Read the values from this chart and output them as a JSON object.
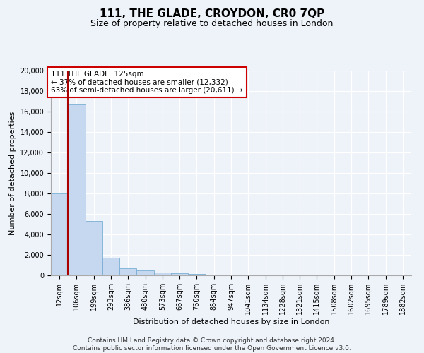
{
  "title": "111, THE GLADE, CROYDON, CR0 7QP",
  "subtitle": "Size of property relative to detached houses in London",
  "xlabel": "Distribution of detached houses by size in London",
  "ylabel": "Number of detached properties",
  "categories": [
    "12sqm",
    "106sqm",
    "199sqm",
    "293sqm",
    "386sqm",
    "480sqm",
    "573sqm",
    "667sqm",
    "760sqm",
    "854sqm",
    "947sqm",
    "1041sqm",
    "1134sqm",
    "1228sqm",
    "1321sqm",
    "1415sqm",
    "1508sqm",
    "1602sqm",
    "1695sqm",
    "1789sqm",
    "1882sqm"
  ],
  "values": [
    8000,
    16700,
    5300,
    1750,
    700,
    450,
    300,
    200,
    150,
    100,
    80,
    60,
    50,
    40,
    30,
    20,
    15,
    10,
    8,
    5,
    3
  ],
  "bar_color": "#c5d8ef",
  "bar_edge_color": "#7aafd4",
  "vline_x": 0.5,
  "vline_color": "#aa0000",
  "annotation_text": "111 THE GLADE: 125sqm\n← 37% of detached houses are smaller (12,332)\n63% of semi-detached houses are larger (20,611) →",
  "annotation_box_color": "#ffffff",
  "annotation_box_edge": "#cc0000",
  "ylim": [
    0,
    20000
  ],
  "yticks": [
    0,
    2000,
    4000,
    6000,
    8000,
    10000,
    12000,
    14000,
    16000,
    18000,
    20000
  ],
  "footer_line1": "Contains HM Land Registry data © Crown copyright and database right 2024.",
  "footer_line2": "Contains public sector information licensed under the Open Government Licence v3.0.",
  "background_color": "#eef3fa",
  "plot_bg_color": "#eef3fa",
  "grid_color": "#d0dcea",
  "title_fontsize": 11,
  "subtitle_fontsize": 9,
  "label_fontsize": 8,
  "tick_fontsize": 7,
  "annotation_fontsize": 7.5,
  "footer_fontsize": 6.5
}
